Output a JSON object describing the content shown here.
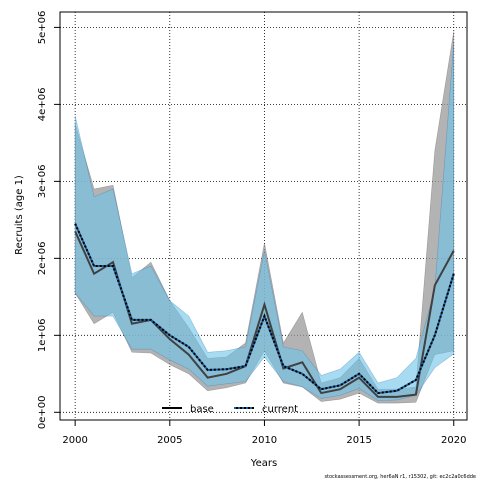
{
  "chart_data": {
    "type": "line",
    "xlabel": "Years",
    "ylabel": "Recruits (age 1)",
    "xlim": [
      1999.2,
      2020.7
    ],
    "ylim": [
      -100000,
      5200000
    ],
    "x_ticks": [
      2000,
      2005,
      2010,
      2015,
      2020
    ],
    "x_tick_labels": [
      "2000",
      "2005",
      "2010",
      "2015",
      "2020"
    ],
    "y_ticks": [
      0,
      1000000,
      2000000,
      3000000,
      4000000,
      5000000
    ],
    "y_tick_labels": [
      "0e+00",
      "1e+06",
      "2e+06",
      "3e+06",
      "4e+06",
      "5e+06"
    ],
    "grid": true,
    "legend_position": "bottom",
    "x": [
      2000,
      2001,
      2002,
      2003,
      2004,
      2005,
      2006,
      2007,
      2008,
      2009,
      2010,
      2011,
      2012,
      2013,
      2014,
      2015,
      2016,
      2017,
      2018,
      2019,
      2020
    ],
    "series": [
      {
        "name": "base",
        "color": "#404040",
        "band_color": "#9a9a9a",
        "line_style": "solid",
        "values": [
          2350000,
          1800000,
          1950000,
          1150000,
          1200000,
          950000,
          750000,
          450000,
          500000,
          600000,
          1400000,
          570000,
          650000,
          250000,
          300000,
          450000,
          200000,
          200000,
          230000,
          1650000,
          2100000
        ],
        "lower": [
          1550000,
          1150000,
          1300000,
          780000,
          770000,
          620000,
          500000,
          280000,
          320000,
          380000,
          800000,
          380000,
          330000,
          140000,
          170000,
          250000,
          120000,
          120000,
          130000,
          750000,
          800000
        ],
        "upper": [
          3750000,
          2900000,
          2950000,
          1750000,
          1950000,
          1450000,
          1100000,
          700000,
          720000,
          900000,
          2200000,
          900000,
          1300000,
          380000,
          450000,
          700000,
          300000,
          300000,
          330000,
          3400000,
          4950000
        ]
      },
      {
        "name": "current",
        "color": "#1f5fa0",
        "band_color": "#6cc3ea",
        "line_style": "dotted",
        "values": [
          2450000,
          1900000,
          1900000,
          1200000,
          1200000,
          1000000,
          850000,
          550000,
          560000,
          600000,
          1250000,
          600000,
          500000,
          300000,
          350000,
          500000,
          250000,
          280000,
          420000,
          1000000,
          1800000
        ],
        "lower": [
          1550000,
          1250000,
          1250000,
          820000,
          820000,
          680000,
          560000,
          340000,
          370000,
          400000,
          720000,
          400000,
          330000,
          180000,
          220000,
          310000,
          150000,
          160000,
          220000,
          580000,
          760000
        ],
        "upper": [
          3850000,
          2800000,
          2900000,
          1800000,
          1900000,
          1450000,
          1250000,
          780000,
          800000,
          850000,
          2100000,
          850000,
          800000,
          480000,
          560000,
          780000,
          380000,
          450000,
          700000,
          1600000,
          4800000
        ]
      }
    ],
    "legend": [
      {
        "label": "base",
        "line_style": "solid"
      },
      {
        "label": "current",
        "line_style": "dotted"
      }
    ]
  },
  "footer_text": "stockassessment.org, her6aN r1, r15302, git: ec2c2a0c6dde"
}
